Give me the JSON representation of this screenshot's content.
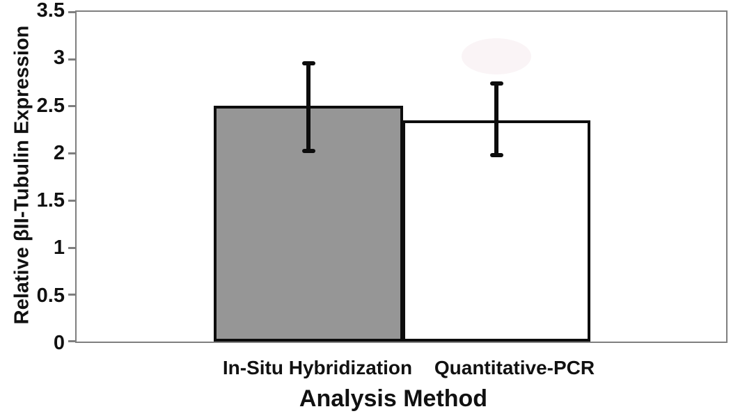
{
  "chart_data": {
    "type": "bar",
    "title": "",
    "xlabel": "Analysis Method",
    "ylabel": "Relative βII-Tubulin Expression",
    "categories": [
      "In-Situ Hybridization",
      "Quantitative-PCR"
    ],
    "values": [
      2.5,
      2.35
    ],
    "error_bars": [
      {
        "upper": 2.95,
        "lower": 2.02
      },
      {
        "upper": 2.74,
        "lower": 1.98
      }
    ],
    "ylim": [
      0,
      3.5
    ],
    "ytick_step": 0.5,
    "ytick_labels": [
      "3.5",
      "3",
      "2.5",
      "2",
      "1.5",
      "1",
      "0.5",
      "0"
    ],
    "bar_colors": [
      "#969696",
      "#ffffff"
    ],
    "bar_border_color": "#0d0d0d",
    "axis_color": "#7f7f7f",
    "text_color": "#111111",
    "grid": false,
    "legend": false
  }
}
